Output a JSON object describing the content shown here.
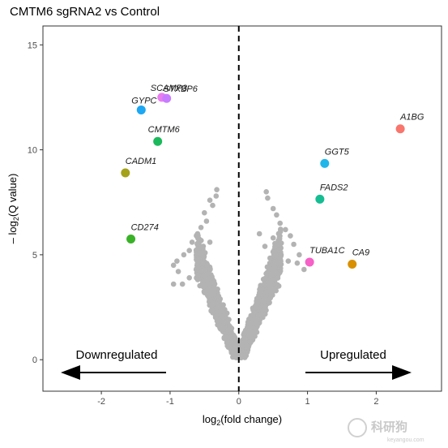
{
  "chart_data": {
    "type": "scatter",
    "title": "CMTM6 sgRNA2 vs Control",
    "xlabel": "log2(fold change)",
    "ylabel": "– log2(Q value)",
    "xlim": [
      -2.85,
      2.95
    ],
    "ylim": [
      -1.5,
      15.9
    ],
    "xticks": [
      -2,
      -1,
      0,
      1,
      2
    ],
    "yticks": [
      0,
      5,
      10,
      15
    ],
    "grid": false,
    "vline_x": 0,
    "highlighted": [
      {
        "gene": "SCAMP3",
        "x": -1.12,
        "y": 12.5,
        "color": "#e97df0"
      },
      {
        "gene": "STXBP6",
        "x": -1.05,
        "y": 12.45,
        "color": "#c77cff"
      },
      {
        "gene": "GYPC",
        "x": -1.42,
        "y": 11.9,
        "color": "#1ea7f2"
      },
      {
        "gene": "CMTM6",
        "x": -1.18,
        "y": 10.4,
        "color": "#1bb95c"
      },
      {
        "gene": "CADM1",
        "x": -1.65,
        "y": 8.9,
        "color": "#a4a219"
      },
      {
        "gene": "CD274",
        "x": -1.57,
        "y": 5.75,
        "color": "#39b227"
      },
      {
        "gene": "A1BG",
        "x": 2.35,
        "y": 11.0,
        "color": "#f8766d"
      },
      {
        "gene": "GGT5",
        "x": 1.25,
        "y": 9.35,
        "color": "#1fb6ea"
      },
      {
        "gene": "FADS2",
        "x": 1.18,
        "y": 7.65,
        "color": "#16bd92"
      },
      {
        "gene": "TUBA1C",
        "x": 1.03,
        "y": 4.65,
        "color": "#f561c7"
      },
      {
        "gene": "CA9",
        "x": 1.65,
        "y": 4.55,
        "color": "#d89000"
      }
    ],
    "background_color": "#b3b3b3",
    "annotations": [
      "Downregulated",
      "Upregulated"
    ]
  },
  "watermark": {
    "main": "科研狗",
    "sub": "keyangou.com"
  }
}
